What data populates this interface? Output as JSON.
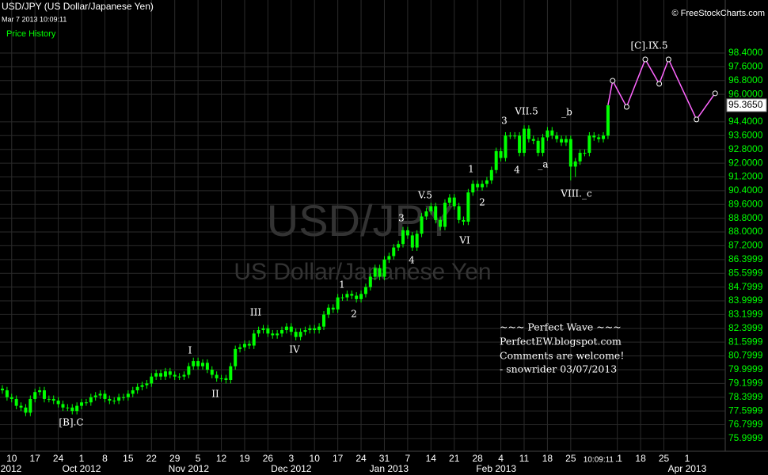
{
  "chart_data": {
    "type": "candlestick",
    "title": "USD/JPY (US Dollar/Japanese Yen)",
    "subtitle": "Mar 7 2013 10:09:11",
    "panel_label": "Price History",
    "source": "© FreeStockCharts.com",
    "watermark": "USD/JPY",
    "watermark_subtitle": "US Dollar/Japanese Yen",
    "color": "#00ff00",
    "grid": true,
    "x": [
      "2012-09-06",
      "2012-09-07",
      "2012-09-10",
      "2012-09-11",
      "2012-09-12",
      "2012-09-13",
      "2012-09-14",
      "2012-09-17",
      "2012-09-18",
      "2012-09-19",
      "2012-09-20",
      "2012-09-21",
      "2012-09-24",
      "2012-09-25",
      "2012-09-26",
      "2012-09-27",
      "2012-09-28",
      "2012-10-01",
      "2012-10-02",
      "2012-10-03",
      "2012-10-04",
      "2012-10-05",
      "2012-10-08",
      "2012-10-09",
      "2012-10-10",
      "2012-10-11",
      "2012-10-12",
      "2012-10-15",
      "2012-10-16",
      "2012-10-17",
      "2012-10-18",
      "2012-10-19",
      "2012-10-22",
      "2012-10-23",
      "2012-10-24",
      "2012-10-25",
      "2012-10-26",
      "2012-10-29",
      "2012-10-30",
      "2012-10-31",
      "2012-11-01",
      "2012-11-02",
      "2012-11-05",
      "2012-11-06",
      "2012-11-07",
      "2012-11-08",
      "2012-11-09",
      "2012-11-12",
      "2012-11-13",
      "2012-11-14",
      "2012-11-15",
      "2012-11-16",
      "2012-11-19",
      "2012-11-20",
      "2012-11-21",
      "2012-11-22",
      "2012-11-23",
      "2012-11-26",
      "2012-11-27",
      "2012-11-28",
      "2012-11-29",
      "2012-11-30",
      "2012-12-03",
      "2012-12-04",
      "2012-12-05",
      "2012-12-06",
      "2012-12-07",
      "2012-12-10",
      "2012-12-11",
      "2012-12-12",
      "2012-12-13",
      "2012-12-14",
      "2012-12-17",
      "2012-12-18",
      "2012-12-19",
      "2012-12-20",
      "2012-12-21",
      "2012-12-24",
      "2012-12-25",
      "2012-12-26",
      "2012-12-27",
      "2012-12-28",
      "2012-12-31",
      "2013-01-01",
      "2013-01-02",
      "2013-01-03",
      "2013-01-04",
      "2013-01-07",
      "2013-01-08",
      "2013-01-09",
      "2013-01-10",
      "2013-01-11",
      "2013-01-14",
      "2013-01-15",
      "2013-01-16",
      "2013-01-17",
      "2013-01-18",
      "2013-01-21",
      "2013-01-22",
      "2013-01-23",
      "2013-01-24",
      "2013-01-25",
      "2013-01-28",
      "2013-01-29",
      "2013-01-30",
      "2013-01-31",
      "2013-02-01",
      "2013-02-04",
      "2013-02-05",
      "2013-02-06",
      "2013-02-07",
      "2013-02-08",
      "2013-02-11",
      "2013-02-12",
      "2013-02-13",
      "2013-02-14",
      "2013-02-15",
      "2013-02-18",
      "2013-02-19",
      "2013-02-20",
      "2013-02-21",
      "2013-02-22",
      "2013-02-25",
      "2013-02-26",
      "2013-02-27",
      "2013-02-28",
      "2013-03-01",
      "2013-03-04",
      "2013-03-05",
      "2013-03-06",
      "2013-03-07"
    ],
    "open": [
      78.9,
      78.8,
      78.4,
      78.3,
      77.9,
      77.8,
      77.5,
      78.3,
      78.7,
      78.8,
      78.3,
      78.3,
      78.2,
      78.0,
      77.8,
      77.8,
      77.6,
      77.9,
      78.1,
      78.1,
      78.4,
      78.5,
      78.6,
      78.3,
      78.2,
      78.2,
      78.4,
      78.4,
      78.6,
      78.8,
      79.0,
      79.1,
      79.2,
      79.6,
      79.8,
      79.6,
      79.9,
      79.7,
      79.6,
      79.6,
      79.7,
      80.2,
      80.5,
      80.2,
      80.4,
      80.0,
      79.7,
      79.5,
      79.5,
      79.4,
      80.2,
      81.2,
      81.3,
      81.5,
      81.4,
      82.1,
      82.3,
      82.4,
      82.1,
      82.0,
      82.1,
      82.3,
      82.5,
      82.2,
      81.9,
      82.2,
      82.3,
      82.4,
      82.3,
      82.5,
      83.2,
      83.6,
      83.5,
      84.2,
      84.2,
      84.4,
      84.3,
      84.1,
      84.4,
      84.8,
      85.4,
      85.9,
      85.4,
      86.4,
      86.6,
      87.1,
      87.3,
      88.1,
      87.8,
      87.1,
      87.9,
      88.9,
      89.2,
      89.5,
      88.7,
      88.3,
      89.7,
      90.0,
      89.5,
      88.7,
      88.6,
      90.3,
      90.8,
      90.6,
      90.8,
      91.0,
      91.6,
      92.7,
      92.3,
      93.6,
      93.6,
      93.6,
      92.6,
      94.0,
      93.4,
      93.3,
      92.6,
      93.5,
      93.9,
      93.6,
      93.4,
      93.2,
      93.4,
      91.8,
      92.1,
      92.6,
      92.6,
      93.6,
      93.5,
      93.4,
      93.6
    ],
    "high": [
      79.1,
      79.0,
      78.6,
      78.5,
      78.1,
      78.0,
      78.5,
      78.9,
      79.0,
      79.0,
      78.5,
      78.5,
      78.4,
      78.2,
      78.0,
      78.0,
      78.1,
      78.3,
      78.3,
      78.6,
      78.7,
      78.8,
      78.8,
      78.5,
      78.4,
      78.6,
      78.6,
      78.8,
      79.0,
      79.2,
      79.3,
      79.4,
      79.8,
      80.0,
      80.0,
      80.1,
      80.1,
      79.9,
      79.8,
      79.9,
      80.4,
      80.7,
      80.7,
      80.6,
      80.6,
      80.2,
      79.9,
      79.7,
      79.7,
      80.4,
      81.4,
      81.5,
      81.7,
      81.7,
      82.3,
      82.5,
      82.6,
      82.6,
      82.3,
      82.3,
      82.5,
      82.7,
      82.7,
      82.4,
      82.4,
      82.5,
      82.6,
      82.6,
      82.7,
      83.4,
      83.8,
      83.8,
      84.4,
      84.4,
      84.6,
      84.6,
      84.5,
      84.6,
      85.0,
      85.6,
      86.1,
      86.1,
      86.6,
      86.8,
      87.3,
      87.5,
      88.3,
      88.3,
      88.0,
      88.1,
      89.1,
      89.4,
      89.7,
      89.7,
      88.9,
      89.9,
      90.2,
      90.2,
      89.7,
      88.9,
      90.5,
      91.0,
      91.0,
      91.0,
      91.2,
      91.8,
      92.9,
      92.9,
      93.8,
      93.8,
      93.8,
      93.8,
      94.2,
      94.2,
      93.6,
      93.5,
      93.7,
      94.1,
      94.1,
      93.8,
      93.6,
      93.6,
      93.6,
      92.3,
      92.8,
      92.8,
      93.8,
      93.8,
      93.7,
      93.8,
      95.5
    ],
    "low": [
      78.6,
      78.2,
      78.1,
      77.7,
      77.6,
      77.3,
      77.3,
      78.1,
      78.5,
      78.1,
      78.1,
      78.0,
      77.8,
      77.6,
      77.6,
      77.4,
      77.4,
      77.7,
      77.9,
      77.9,
      78.2,
      78.3,
      78.1,
      78.0,
      78.0,
      78.0,
      78.2,
      78.2,
      78.4,
      78.6,
      78.8,
      78.9,
      79.0,
      79.4,
      79.4,
      79.4,
      79.5,
      79.4,
      79.4,
      79.4,
      79.5,
      80.0,
      80.0,
      80.0,
      79.8,
      79.5,
      79.3,
      79.3,
      79.2,
      79.2,
      80.0,
      81.0,
      81.1,
      81.2,
      81.2,
      81.9,
      82.1,
      81.9,
      81.8,
      81.8,
      81.9,
      82.1,
      82.0,
      81.7,
      81.7,
      82.0,
      82.1,
      82.1,
      82.1,
      82.3,
      83.0,
      83.3,
      83.3,
      84.0,
      84.0,
      84.1,
      83.9,
      83.9,
      84.2,
      84.6,
      85.2,
      85.2,
      85.2,
      86.2,
      86.4,
      86.9,
      87.1,
      87.6,
      86.9,
      86.9,
      87.7,
      88.7,
      89.0,
      88.5,
      88.1,
      88.1,
      89.5,
      89.3,
      88.5,
      88.4,
      88.4,
      90.1,
      90.4,
      90.4,
      90.6,
      90.8,
      91.4,
      92.1,
      92.1,
      93.4,
      93.4,
      92.4,
      92.4,
      93.2,
      93.1,
      92.4,
      92.4,
      93.3,
      93.4,
      93.2,
      93.0,
      93.0,
      91.0,
      91.2,
      91.9,
      92.4,
      92.4,
      93.3,
      93.2,
      93.2,
      93.4
    ],
    "close": [
      78.8,
      78.4,
      78.3,
      77.9,
      77.8,
      77.5,
      78.3,
      78.7,
      78.8,
      78.3,
      78.3,
      78.2,
      78.0,
      77.8,
      77.8,
      77.6,
      77.9,
      78.1,
      78.1,
      78.4,
      78.5,
      78.6,
      78.3,
      78.2,
      78.2,
      78.4,
      78.4,
      78.6,
      78.8,
      79.0,
      79.1,
      79.2,
      79.6,
      79.8,
      79.6,
      79.9,
      79.7,
      79.6,
      79.6,
      79.7,
      80.2,
      80.5,
      80.2,
      80.4,
      80.0,
      79.7,
      79.5,
      79.5,
      79.4,
      80.2,
      81.2,
      81.3,
      81.5,
      81.4,
      82.1,
      82.3,
      82.4,
      82.1,
      82.0,
      82.1,
      82.3,
      82.5,
      82.2,
      81.9,
      82.2,
      82.3,
      82.4,
      82.3,
      82.5,
      83.2,
      83.6,
      83.5,
      84.2,
      84.2,
      84.4,
      84.3,
      84.1,
      84.4,
      84.8,
      85.4,
      85.9,
      85.4,
      86.4,
      86.6,
      87.1,
      87.3,
      88.1,
      87.8,
      87.1,
      87.9,
      88.9,
      89.2,
      89.5,
      88.7,
      88.3,
      89.7,
      90.0,
      89.5,
      88.7,
      88.6,
      90.3,
      90.8,
      90.6,
      90.8,
      91.0,
      91.6,
      92.7,
      92.3,
      93.6,
      93.6,
      93.6,
      92.6,
      94.0,
      93.4,
      93.3,
      92.6,
      93.5,
      93.9,
      93.6,
      93.4,
      93.2,
      93.4,
      91.8,
      92.1,
      92.6,
      92.6,
      93.6,
      93.5,
      93.4,
      93.6,
      95.365
    ],
    "last_price": {
      "value": 95.365,
      "label": "95.3650"
    },
    "projection": {
      "color": "#ff66ff",
      "x": [
        "2013-03-07",
        "2013-03-08",
        "2013-03-13",
        "2013-03-19",
        "2013-03-22",
        "2013-03-26",
        "2013-04-03",
        "2013-04-09"
      ],
      "values": [
        95.37,
        96.79,
        95.27,
        98.03,
        96.61,
        98.03,
        94.54,
        96.06
      ]
    },
    "xlim": [
      "2012-09-06",
      "2013-04-11"
    ],
    "xticks": [
      {
        "value": "2012-09-10",
        "label": "10"
      },
      {
        "value": "2012-09-17",
        "label": "17"
      },
      {
        "value": "2012-09-24",
        "label": "24"
      },
      {
        "value": "2012-10-01",
        "label": "1"
      },
      {
        "value": "2012-10-08",
        "label": "8"
      },
      {
        "value": "2012-10-15",
        "label": "15"
      },
      {
        "value": "2012-10-22",
        "label": "22"
      },
      {
        "value": "2012-10-29",
        "label": "29"
      },
      {
        "value": "2012-11-05",
        "label": "5"
      },
      {
        "value": "2012-11-12",
        "label": "12"
      },
      {
        "value": "2012-11-19",
        "label": "19"
      },
      {
        "value": "2012-11-26",
        "label": "26"
      },
      {
        "value": "2012-12-03",
        "label": "3"
      },
      {
        "value": "2012-12-10",
        "label": "10"
      },
      {
        "value": "2012-12-17",
        "label": "17"
      },
      {
        "value": "2012-12-24",
        "label": "24"
      },
      {
        "value": "2012-12-31",
        "label": "31"
      },
      {
        "value": "2013-01-07",
        "label": "7"
      },
      {
        "value": "2013-01-14",
        "label": "14"
      },
      {
        "value": "2013-01-21",
        "label": "21"
      },
      {
        "value": "2013-01-28",
        "label": "28"
      },
      {
        "value": "2013-02-04",
        "label": "4"
      },
      {
        "value": "2013-02-11",
        "label": "11"
      },
      {
        "value": "2013-02-18",
        "label": "18"
      },
      {
        "value": "2013-02-25",
        "label": "25"
      },
      {
        "value": "2013-03-11",
        "label": "11"
      },
      {
        "value": "2013-03-18",
        "label": "18"
      },
      {
        "value": "2013-03-25",
        "label": "25"
      },
      {
        "value": "2013-04-01",
        "label": "1"
      }
    ],
    "month_ticks": [
      {
        "value": "2012-09-04",
        "label": "2012"
      },
      {
        "value": "2012-10-01",
        "label": "Oct 2012"
      },
      {
        "value": "2012-11-01",
        "label": "Nov 2012"
      },
      {
        "value": "2012-12-03",
        "label": "Dec 2012"
      },
      {
        "value": "2013-01-01",
        "label": "Jan 2013"
      },
      {
        "value": "2013-02-01",
        "label": "Feb 2013"
      },
      {
        "value": "2013-04-01",
        "label": "Apr 2013"
      }
    ],
    "time_marker": {
      "value": "2013-03-07",
      "label": "10:09:11"
    },
    "ylim": [
      75.03,
      100.33
    ],
    "yticks": [
      75.9999,
      76.7999,
      77.5999,
      78.3999,
      79.1999,
      79.9999,
      80.7999,
      81.5999,
      82.3999,
      83.1999,
      83.9999,
      84.7999,
      85.5999,
      86.3999,
      {
        "value": 87.2,
        "label": "87.2000"
      },
      {
        "value": 88.0,
        "label": "88.0000"
      },
      {
        "value": 88.8,
        "label": "88.8000"
      },
      {
        "value": 89.6,
        "label": "89.6000"
      },
      {
        "value": 90.4,
        "label": "90.4000"
      },
      {
        "value": 91.2,
        "label": "91.2000"
      },
      {
        "value": 92.0,
        "label": "92.0000"
      },
      {
        "value": 92.8,
        "label": "92.8000"
      },
      {
        "value": 93.6,
        "label": "93.6000"
      },
      {
        "value": 94.4,
        "label": "94.4000"
      },
      {
        "value": 96.0,
        "label": "96.0000"
      },
      {
        "value": 96.8,
        "label": "96.8000"
      },
      {
        "value": 97.6,
        "label": "97.6000"
      },
      {
        "value": 98.4,
        "label": "98.4000"
      }
    ],
    "annotations": [
      "[B].C",
      "I",
      "II",
      "III",
      "IV",
      "1",
      "2",
      "3",
      "4",
      "V.5",
      "VI",
      "1",
      "2",
      "3",
      "4",
      "VII.5",
      "_a",
      "_b",
      "VIII._c",
      "[C].IX.5"
    ],
    "note": [
      "~~~ Perfect Wave ~~~",
      "PerfectEW.blogspot.com",
      "Comments are welcome!",
      "- snowrider  03/07/2013"
    ]
  }
}
